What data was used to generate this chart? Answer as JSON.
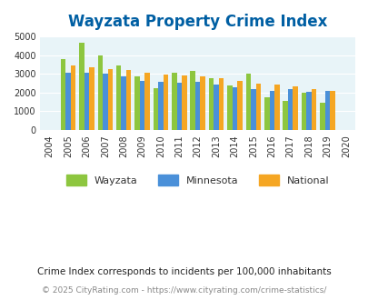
{
  "title": "Wayzata Property Crime Index",
  "years": [
    2004,
    2005,
    2006,
    2007,
    2008,
    2009,
    2010,
    2011,
    2012,
    2013,
    2014,
    2015,
    2016,
    2017,
    2018,
    2019,
    2020
  ],
  "wayzata": [
    null,
    3800,
    4650,
    3980,
    3450,
    2870,
    2250,
    3050,
    3170,
    2780,
    2370,
    3020,
    1760,
    1560,
    1990,
    1480,
    null
  ],
  "minnesota": [
    null,
    3080,
    3080,
    3030,
    2870,
    2620,
    2570,
    2540,
    2570,
    2410,
    2280,
    2200,
    2110,
    2190,
    2020,
    2080,
    null
  ],
  "national": [
    null,
    3440,
    3330,
    3240,
    3200,
    3040,
    2950,
    2920,
    2880,
    2750,
    2640,
    2480,
    2450,
    2350,
    2180,
    2100,
    null
  ],
  "wayzata_color": "#8dc63f",
  "minnesota_color": "#4a90d9",
  "national_color": "#f5a623",
  "bg_color": "#e8f4f8",
  "title_color": "#005fa3",
  "ylim": [
    0,
    5000
  ],
  "yticks": [
    0,
    1000,
    2000,
    3000,
    4000,
    5000
  ],
  "footer1": "Crime Index corresponds to incidents per 100,000 inhabitants",
  "footer2": "© 2025 CityRating.com - https://www.cityrating.com/crime-statistics/",
  "bar_width": 0.27
}
